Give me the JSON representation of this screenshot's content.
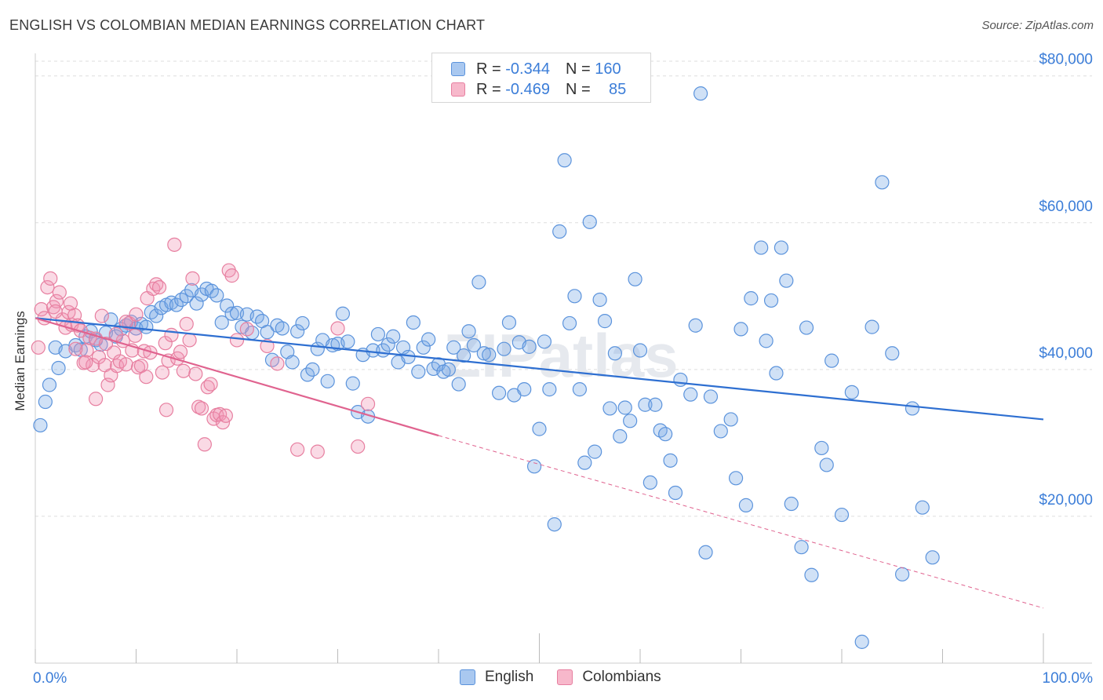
{
  "title": "ENGLISH VS COLOMBIAN MEDIAN EARNINGS CORRELATION CHART",
  "source": "Source: ZipAtlas.com",
  "watermark": "ZIPatlas",
  "legend": {
    "rows": [
      {
        "r_label": "R =",
        "r_value": "-0.344",
        "n_label": "N =",
        "n_value": "160",
        "color": "#a9c8f0",
        "border": "#5b93dc"
      },
      {
        "r_label": "R =",
        "r_value": "-0.469",
        "n_label": "N =",
        "n_value": "85",
        "color": "#f7b8cb",
        "border": "#e77fa0"
      }
    ]
  },
  "bottom_legend": [
    {
      "label": "English",
      "color": "#a9c8f0",
      "border": "#5b93dc"
    },
    {
      "label": "Colombians",
      "color": "#f7b8cb",
      "border": "#e77fa0"
    }
  ],
  "colors": {
    "english": "#5b93dc",
    "english_fill": "rgba(120,168,230,0.35)",
    "english_line": "#2e6fd1",
    "colombians": "#e77fa0",
    "colombians_fill": "rgba(240,150,180,0.35)",
    "colombians_line": "#e0638f",
    "axis_text": "#3b7dd8",
    "grid": "#dddddd"
  },
  "chart_data": {
    "type": "scatter",
    "title": "ENGLISH VS COLOMBIAN MEDIAN EARNINGS CORRELATION CHART",
    "xlabel": "",
    "ylabel": "Median Earnings",
    "x_tick_labels": [
      "0.0%",
      "100.0%"
    ],
    "y_tick_labels": [
      "$20,000",
      "$40,000",
      "$60,000",
      "$80,000"
    ],
    "y_ticks": [
      20000,
      40000,
      60000,
      80000
    ],
    "xlim": [
      0,
      100
    ],
    "ylim": [
      0,
      82000
    ],
    "grid": "horizontal dashed",
    "legend_position": "top-center",
    "series": [
      {
        "name": "English",
        "trend": {
          "x": [
            0,
            100
          ],
          "y": [
            47000,
            33200
          ],
          "style": "solid"
        },
        "points": [
          [
            0.5,
            32400
          ],
          [
            1,
            35600
          ],
          [
            1.4,
            37900
          ],
          [
            2,
            43000
          ],
          [
            2.3,
            40200
          ],
          [
            3,
            42500
          ],
          [
            4,
            43300
          ],
          [
            4.5,
            42700
          ],
          [
            5,
            44500
          ],
          [
            5.5,
            45200
          ],
          [
            6,
            44000
          ],
          [
            6.5,
            43400
          ],
          [
            7,
            45000
          ],
          [
            7.5,
            46800
          ],
          [
            8,
            44500
          ],
          [
            8.5,
            45500
          ],
          [
            9,
            46000
          ],
          [
            9.5,
            46500
          ],
          [
            10,
            45600
          ],
          [
            10.5,
            46200
          ],
          [
            11,
            45800
          ],
          [
            11.5,
            47800
          ],
          [
            12,
            47300
          ],
          [
            12.5,
            48400
          ],
          [
            13,
            48800
          ],
          [
            13.5,
            49100
          ],
          [
            14,
            48800
          ],
          [
            14.5,
            49500
          ],
          [
            15,
            50000
          ],
          [
            15.5,
            50800
          ],
          [
            16,
            49000
          ],
          [
            16.5,
            50200
          ],
          [
            17,
            51000
          ],
          [
            17.5,
            50700
          ],
          [
            18,
            50100
          ],
          [
            18.5,
            46400
          ],
          [
            19,
            48700
          ],
          [
            19.5,
            47600
          ],
          [
            20,
            47700
          ],
          [
            20.5,
            45800
          ],
          [
            21,
            47500
          ],
          [
            21.5,
            45000
          ],
          [
            22,
            47200
          ],
          [
            22.5,
            46600
          ],
          [
            23,
            45100
          ],
          [
            23.5,
            41300
          ],
          [
            24,
            46000
          ],
          [
            24.5,
            45600
          ],
          [
            25,
            42400
          ],
          [
            25.5,
            41000
          ],
          [
            26,
            45200
          ],
          [
            26.5,
            46300
          ],
          [
            27,
            39300
          ],
          [
            27.5,
            40000
          ],
          [
            28,
            42800
          ],
          [
            28.5,
            44000
          ],
          [
            29,
            38400
          ],
          [
            29.5,
            43300
          ],
          [
            30,
            43500
          ],
          [
            30.5,
            47600
          ],
          [
            31,
            43800
          ],
          [
            31.5,
            38100
          ],
          [
            32,
            34200
          ],
          [
            32.5,
            42000
          ],
          [
            33,
            33600
          ],
          [
            33.5,
            42600
          ],
          [
            34,
            44800
          ],
          [
            34.5,
            42600
          ],
          [
            35,
            43400
          ],
          [
            35.5,
            44500
          ],
          [
            36,
            41000
          ],
          [
            36.5,
            43000
          ],
          [
            37,
            41700
          ],
          [
            37.5,
            46400
          ],
          [
            38,
            39700
          ],
          [
            38.5,
            43000
          ],
          [
            39,
            44100
          ],
          [
            39.5,
            40100
          ],
          [
            40,
            40700
          ],
          [
            40.5,
            39700
          ],
          [
            41,
            40000
          ],
          [
            41.5,
            43000
          ],
          [
            42,
            38000
          ],
          [
            42.5,
            41900
          ],
          [
            43,
            45200
          ],
          [
            43.5,
            43300
          ],
          [
            44,
            51900
          ],
          [
            44.5,
            42200
          ],
          [
            45,
            42000
          ],
          [
            46,
            36800
          ],
          [
            46.5,
            42800
          ],
          [
            47,
            46400
          ],
          [
            47.5,
            36500
          ],
          [
            48,
            43700
          ],
          [
            48.5,
            37300
          ],
          [
            49,
            43100
          ],
          [
            49.5,
            26800
          ],
          [
            50,
            31900
          ],
          [
            50.5,
            43800
          ],
          [
            51,
            37300
          ],
          [
            51.5,
            18900
          ],
          [
            52,
            58800
          ],
          [
            52.5,
            68500
          ],
          [
            53,
            46300
          ],
          [
            53.5,
            50000
          ],
          [
            54,
            37300
          ],
          [
            54.5,
            27300
          ],
          [
            55,
            60100
          ],
          [
            55.5,
            28800
          ],
          [
            56,
            49500
          ],
          [
            56.5,
            46600
          ],
          [
            57,
            34700
          ],
          [
            57.5,
            42200
          ],
          [
            58,
            30900
          ],
          [
            58.5,
            34800
          ],
          [
            59,
            33000
          ],
          [
            59.5,
            52300
          ],
          [
            60,
            42600
          ],
          [
            60.5,
            35200
          ],
          [
            61,
            24600
          ],
          [
            61.5,
            35200
          ],
          [
            62,
            31700
          ],
          [
            62.5,
            31200
          ],
          [
            63,
            27600
          ],
          [
            63.5,
            23200
          ],
          [
            64,
            38600
          ],
          [
            65,
            36600
          ],
          [
            65.5,
            46000
          ],
          [
            66,
            77600
          ],
          [
            66.5,
            15100
          ],
          [
            67,
            36300
          ],
          [
            68,
            31600
          ],
          [
            69,
            33200
          ],
          [
            69.5,
            25200
          ],
          [
            70,
            45500
          ],
          [
            70.5,
            21500
          ],
          [
            71,
            49700
          ],
          [
            72,
            56600
          ],
          [
            72.5,
            43900
          ],
          [
            73,
            49400
          ],
          [
            73.5,
            39500
          ],
          [
            74,
            56600
          ],
          [
            74.5,
            52100
          ],
          [
            75,
            21700
          ],
          [
            76,
            15800
          ],
          [
            76.5,
            45700
          ],
          [
            77,
            12000
          ],
          [
            78,
            29300
          ],
          [
            78.5,
            27000
          ],
          [
            79,
            41200
          ],
          [
            80,
            20200
          ],
          [
            81,
            36900
          ],
          [
            82,
            2900
          ],
          [
            83,
            45800
          ],
          [
            84,
            65500
          ],
          [
            85,
            42200
          ],
          [
            86,
            12100
          ],
          [
            87,
            34700
          ],
          [
            88,
            21200
          ],
          [
            89,
            14400
          ]
        ]
      },
      {
        "name": "Colombians",
        "trend": {
          "x": [
            0,
            40
          ],
          "y": [
            47000,
            31000
          ],
          "style": "solid",
          "extended": {
            "x": [
              40,
              100
            ],
            "y": [
              31000,
              7500
            ],
            "style": "dashed"
          }
        },
        "points": [
          [
            0.3,
            43000
          ],
          [
            0.6,
            48200
          ],
          [
            0.9,
            47000
          ],
          [
            1.2,
            51200
          ],
          [
            1.5,
            52400
          ],
          [
            1.8,
            48500
          ],
          [
            2.1,
            49300
          ],
          [
            2.4,
            50500
          ],
          [
            2.7,
            46800
          ],
          [
            3,
            45700
          ],
          [
            3.3,
            47800
          ],
          [
            3.6,
            46100
          ],
          [
            3.9,
            47400
          ],
          [
            4.2,
            46000
          ],
          [
            4.5,
            45300
          ],
          [
            4.8,
            40900
          ],
          [
            5.1,
            42600
          ],
          [
            5.4,
            44300
          ],
          [
            5.7,
            40600
          ],
          [
            6,
            36000
          ],
          [
            6.3,
            41700
          ],
          [
            6.6,
            47300
          ],
          [
            6.9,
            40600
          ],
          [
            7.2,
            37900
          ],
          [
            7.5,
            39200
          ],
          [
            7.8,
            42300
          ],
          [
            8.1,
            40500
          ],
          [
            8.4,
            41100
          ],
          [
            8.7,
            43900
          ],
          [
            9,
            40700
          ],
          [
            9.3,
            46300
          ],
          [
            9.6,
            42600
          ],
          [
            9.9,
            44600
          ],
          [
            10.2,
            40300
          ],
          [
            10.5,
            40500
          ],
          [
            10.8,
            42500
          ],
          [
            11.1,
            49700
          ],
          [
            11.4,
            42300
          ],
          [
            11.7,
            51000
          ],
          [
            12,
            51600
          ],
          [
            12.3,
            51200
          ],
          [
            12.6,
            39600
          ],
          [
            12.9,
            43600
          ],
          [
            13.2,
            41200
          ],
          [
            13.5,
            44700
          ],
          [
            13.8,
            57000
          ],
          [
            14.1,
            41500
          ],
          [
            14.4,
            42400
          ],
          [
            14.7,
            39800
          ],
          [
            15,
            46200
          ],
          [
            15.3,
            44000
          ],
          [
            15.6,
            52400
          ],
          [
            15.9,
            39400
          ],
          [
            16.2,
            34900
          ],
          [
            16.5,
            34700
          ],
          [
            16.8,
            29800
          ],
          [
            17.1,
            37600
          ],
          [
            17.4,
            38000
          ],
          [
            17.7,
            33300
          ],
          [
            18,
            33800
          ],
          [
            18.3,
            33900
          ],
          [
            18.6,
            32800
          ],
          [
            18.9,
            33700
          ],
          [
            19.2,
            53500
          ],
          [
            19.5,
            52800
          ],
          [
            20,
            44000
          ],
          [
            21,
            45500
          ],
          [
            23,
            43200
          ],
          [
            24,
            40800
          ],
          [
            26,
            29100
          ],
          [
            28,
            28800
          ],
          [
            30,
            45600
          ],
          [
            32,
            29500
          ],
          [
            33,
            35300
          ],
          [
            13,
            34500
          ],
          [
            10,
            47500
          ],
          [
            8,
            44800
          ],
          [
            6,
            44200
          ],
          [
            4,
            42800
          ],
          [
            2,
            47900
          ],
          [
            3.5,
            49000
          ],
          [
            5,
            41000
          ],
          [
            7,
            43500
          ],
          [
            9,
            46500
          ],
          [
            11,
            39000
          ]
        ]
      }
    ]
  }
}
